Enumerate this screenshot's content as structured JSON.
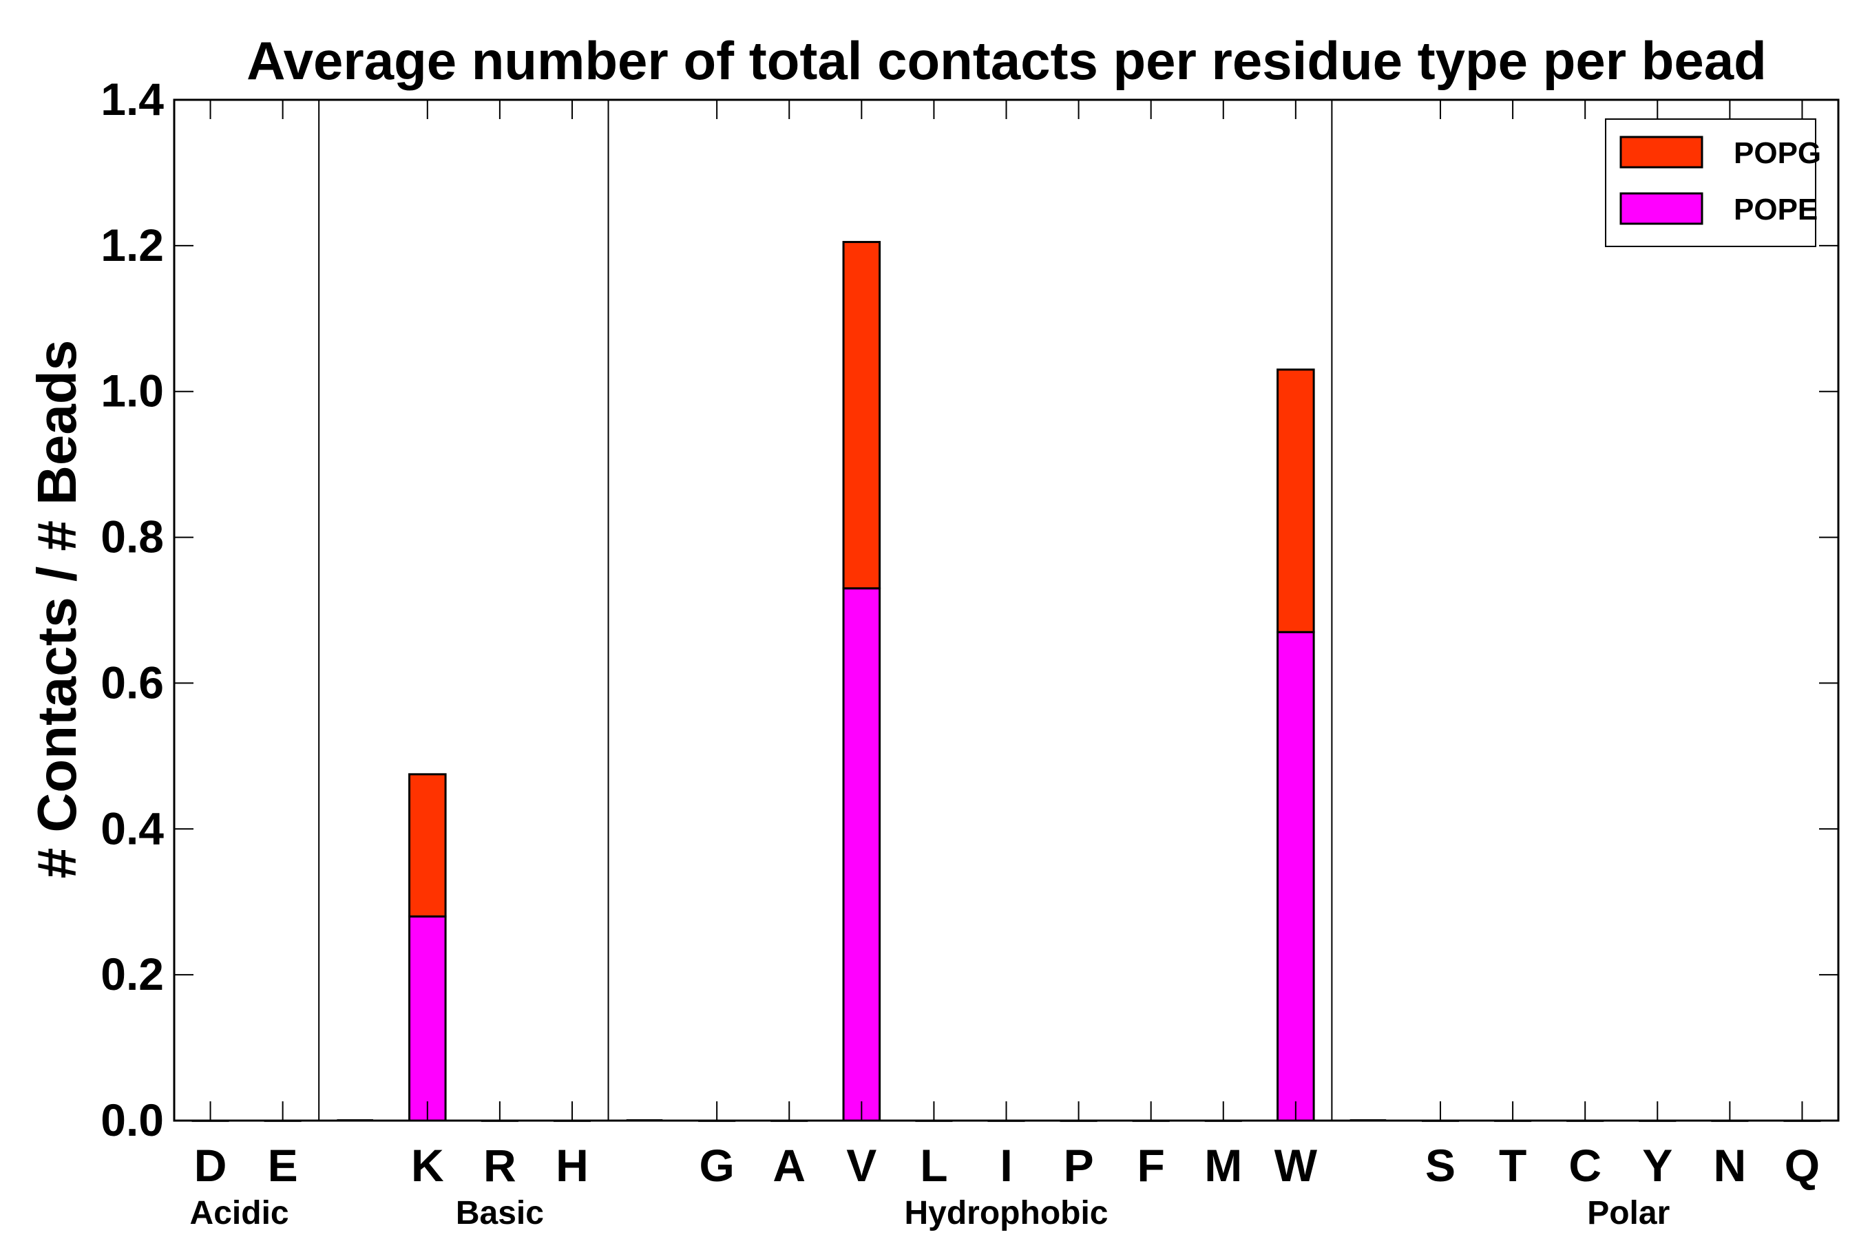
{
  "chart_data": {
    "type": "bar",
    "stacked": true,
    "title": "Average number of total contacts per residue type per bead",
    "xlabel": "",
    "ylabel": "# Contacts / # Beads",
    "ylim": [
      0,
      1.4
    ],
    "yticks": [
      "0.0",
      "0.2",
      "0.4",
      "0.6",
      "0.8",
      "1.0",
      "1.2",
      "1.4"
    ],
    "ytick_values": [
      0,
      0.2,
      0.4,
      0.6,
      0.8,
      1.0,
      1.2,
      1.4
    ],
    "slots": 23,
    "categories": [
      "D",
      "E",
      "K",
      "R",
      "H",
      "G",
      "A",
      "V",
      "L",
      "I",
      "P",
      "F",
      "M",
      "W",
      "S",
      "T",
      "C",
      "Y",
      "N",
      "Q"
    ],
    "category_slots": [
      0,
      1,
      3,
      4,
      5,
      7,
      8,
      9,
      10,
      11,
      12,
      13,
      14,
      15,
      17,
      18,
      19,
      20,
      21,
      22
    ],
    "groups": [
      {
        "name": "Acidic",
        "center_slot": 0.4
      },
      {
        "name": "Basic",
        "center_slot": 4.0
      },
      {
        "name": "Hydrophobic",
        "center_slot": 11.0
      },
      {
        "name": "Polar",
        "center_slot": 19.6
      }
    ],
    "separator_slots": [
      2,
      6,
      16
    ],
    "series": [
      {
        "name": "POPE",
        "color": "#ff00ff",
        "values": [
          0,
          0,
          0.28,
          0,
          0,
          0,
          0,
          0.73,
          0,
          0,
          0,
          0,
          0,
          0.67,
          0,
          0,
          0,
          0,
          0,
          0
        ]
      },
      {
        "name": "POPG",
        "color": "#ff3300",
        "values": [
          0,
          0,
          0.195,
          0,
          0,
          0,
          0,
          0.475,
          0,
          0,
          0,
          0,
          0,
          0.36,
          0,
          0,
          0,
          0,
          0,
          0
        ]
      }
    ],
    "legend": {
      "placement": "top-right",
      "entries": [
        {
          "label": "POPG",
          "color": "#ff3300"
        },
        {
          "label": "POPE",
          "color": "#ff00ff"
        }
      ]
    },
    "grid": false
  }
}
